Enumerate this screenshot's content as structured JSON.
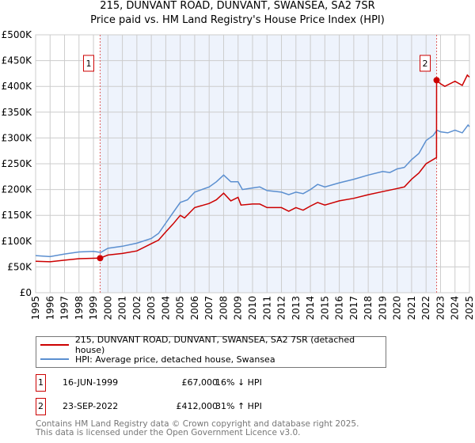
{
  "title": "215, DUNVANT ROAD, DUNVANT, SWANSEA, SA2 7SR",
  "subtitle": "Price paid vs. HM Land Registry's House Price Index (HPI)",
  "chart_data": {
    "type": "line",
    "ylim": [
      0,
      500000
    ],
    "xlim": [
      1995,
      2025
    ],
    "y_ticks": [
      {
        "v": 0,
        "label": "£0"
      },
      {
        "v": 50000,
        "label": "£50K"
      },
      {
        "v": 100000,
        "label": "£100K"
      },
      {
        "v": 150000,
        "label": "£150K"
      },
      {
        "v": 200000,
        "label": "£200K"
      },
      {
        "v": 250000,
        "label": "£250K"
      },
      {
        "v": 300000,
        "label": "£300K"
      },
      {
        "v": 350000,
        "label": "£350K"
      },
      {
        "v": 400000,
        "label": "£400K"
      },
      {
        "v": 450000,
        "label": "£450K"
      },
      {
        "v": 500000,
        "label": "£500K"
      }
    ],
    "x_ticks": [
      "1995",
      "1996",
      "1997",
      "1998",
      "1999",
      "2000",
      "2001",
      "2002",
      "2003",
      "2004",
      "2005",
      "2006",
      "2007",
      "2008",
      "2009",
      "2010",
      "2011",
      "2012",
      "2013",
      "2014",
      "2015",
      "2016",
      "2017",
      "2018",
      "2019",
      "2020",
      "2021",
      "2022",
      "2023",
      "2024",
      "2025"
    ],
    "grid": true,
    "shaded_range": [
      1999.46,
      2022.73
    ],
    "series": [
      {
        "name": "215, DUNVANT ROAD, DUNVANT, SWANSEA, SA2 7SR (detached house)",
        "color": "#cc0000",
        "x": [
          1995,
          1996,
          1997,
          1998,
          1999.46,
          2000,
          2001,
          2002,
          2003,
          2003.5,
          2004,
          2004.5,
          2005,
          2005.3,
          2006,
          2007,
          2007.5,
          2008,
          2008.5,
          2009,
          2009.2,
          2010,
          2010.5,
          2011,
          2012,
          2012.5,
          2013,
          2013.5,
          2014,
          2014.5,
          2015,
          2016,
          2017,
          2018,
          2019,
          2020,
          2020.5,
          2021,
          2021.5,
          2022,
          2022.72,
          2022.73,
          2023,
          2023.3,
          2024,
          2024.5,
          2024.85,
          2025
        ],
        "y": [
          61000,
          60000,
          63000,
          66000,
          67000,
          73000,
          76000,
          81000,
          95000,
          102000,
          118000,
          133000,
          150000,
          145000,
          165000,
          173000,
          180000,
          193000,
          178000,
          185000,
          170000,
          172000,
          172000,
          165000,
          165000,
          158000,
          165000,
          160000,
          168000,
          175000,
          170000,
          178000,
          183000,
          190000,
          196000,
          202000,
          205000,
          220000,
          232000,
          250000,
          262000,
          412000,
          405000,
          400000,
          410000,
          402000,
          422000,
          418000
        ]
      },
      {
        "name": "HPI: Average price, detached house, Swansea",
        "color": "#5b8fd0",
        "x": [
          1995,
          1996,
          1997,
          1998,
          1999,
          1999.5,
          2000,
          2001,
          2002,
          2003,
          2003.5,
          2004,
          2004.5,
          2005,
          2005.5,
          2006,
          2007,
          2007.5,
          2008,
          2008.5,
          2009,
          2009.3,
          2010,
          2010.5,
          2011,
          2012,
          2012.5,
          2013,
          2013.5,
          2014,
          2014.5,
          2015,
          2016,
          2017,
          2018,
          2019,
          2019.5,
          2020,
          2020.5,
          2021,
          2021.5,
          2022,
          2022.5,
          2022.75,
          2023,
          2023.5,
          2024,
          2024.5,
          2024.9,
          2025
        ],
        "y": [
          72000,
          70000,
          75000,
          79000,
          80000,
          78000,
          86000,
          90000,
          96000,
          105000,
          115000,
          135000,
          155000,
          175000,
          180000,
          195000,
          205000,
          215000,
          228000,
          215000,
          215000,
          200000,
          203000,
          205000,
          198000,
          195000,
          190000,
          195000,
          192000,
          200000,
          210000,
          205000,
          213000,
          220000,
          228000,
          235000,
          233000,
          240000,
          243000,
          258000,
          270000,
          295000,
          305000,
          315000,
          312000,
          310000,
          315000,
          310000,
          325000,
          322000
        ]
      }
    ],
    "markers": [
      {
        "label": "1",
        "x": 1999.46,
        "y": 67000
      },
      {
        "label": "2",
        "x": 2022.73,
        "y": 412000
      }
    ]
  },
  "legend": {
    "property": "215, DUNVANT ROAD, DUNVANT, SWANSEA, SA2 7SR (detached house)",
    "hpi": "HPI: Average price, detached house, Swansea"
  },
  "transactions": [
    {
      "num": "1",
      "date": "16-JUN-1999",
      "price": "£67,000",
      "hpi": "16% ↓ HPI"
    },
    {
      "num": "2",
      "date": "23-SEP-2022",
      "price": "£412,000",
      "hpi": "31% ↑ HPI"
    }
  ],
  "footer": {
    "line1": "Contains HM Land Registry data © Crown copyright and database right 2025.",
    "line2": "This data is licensed under the Open Government Licence v3.0."
  }
}
